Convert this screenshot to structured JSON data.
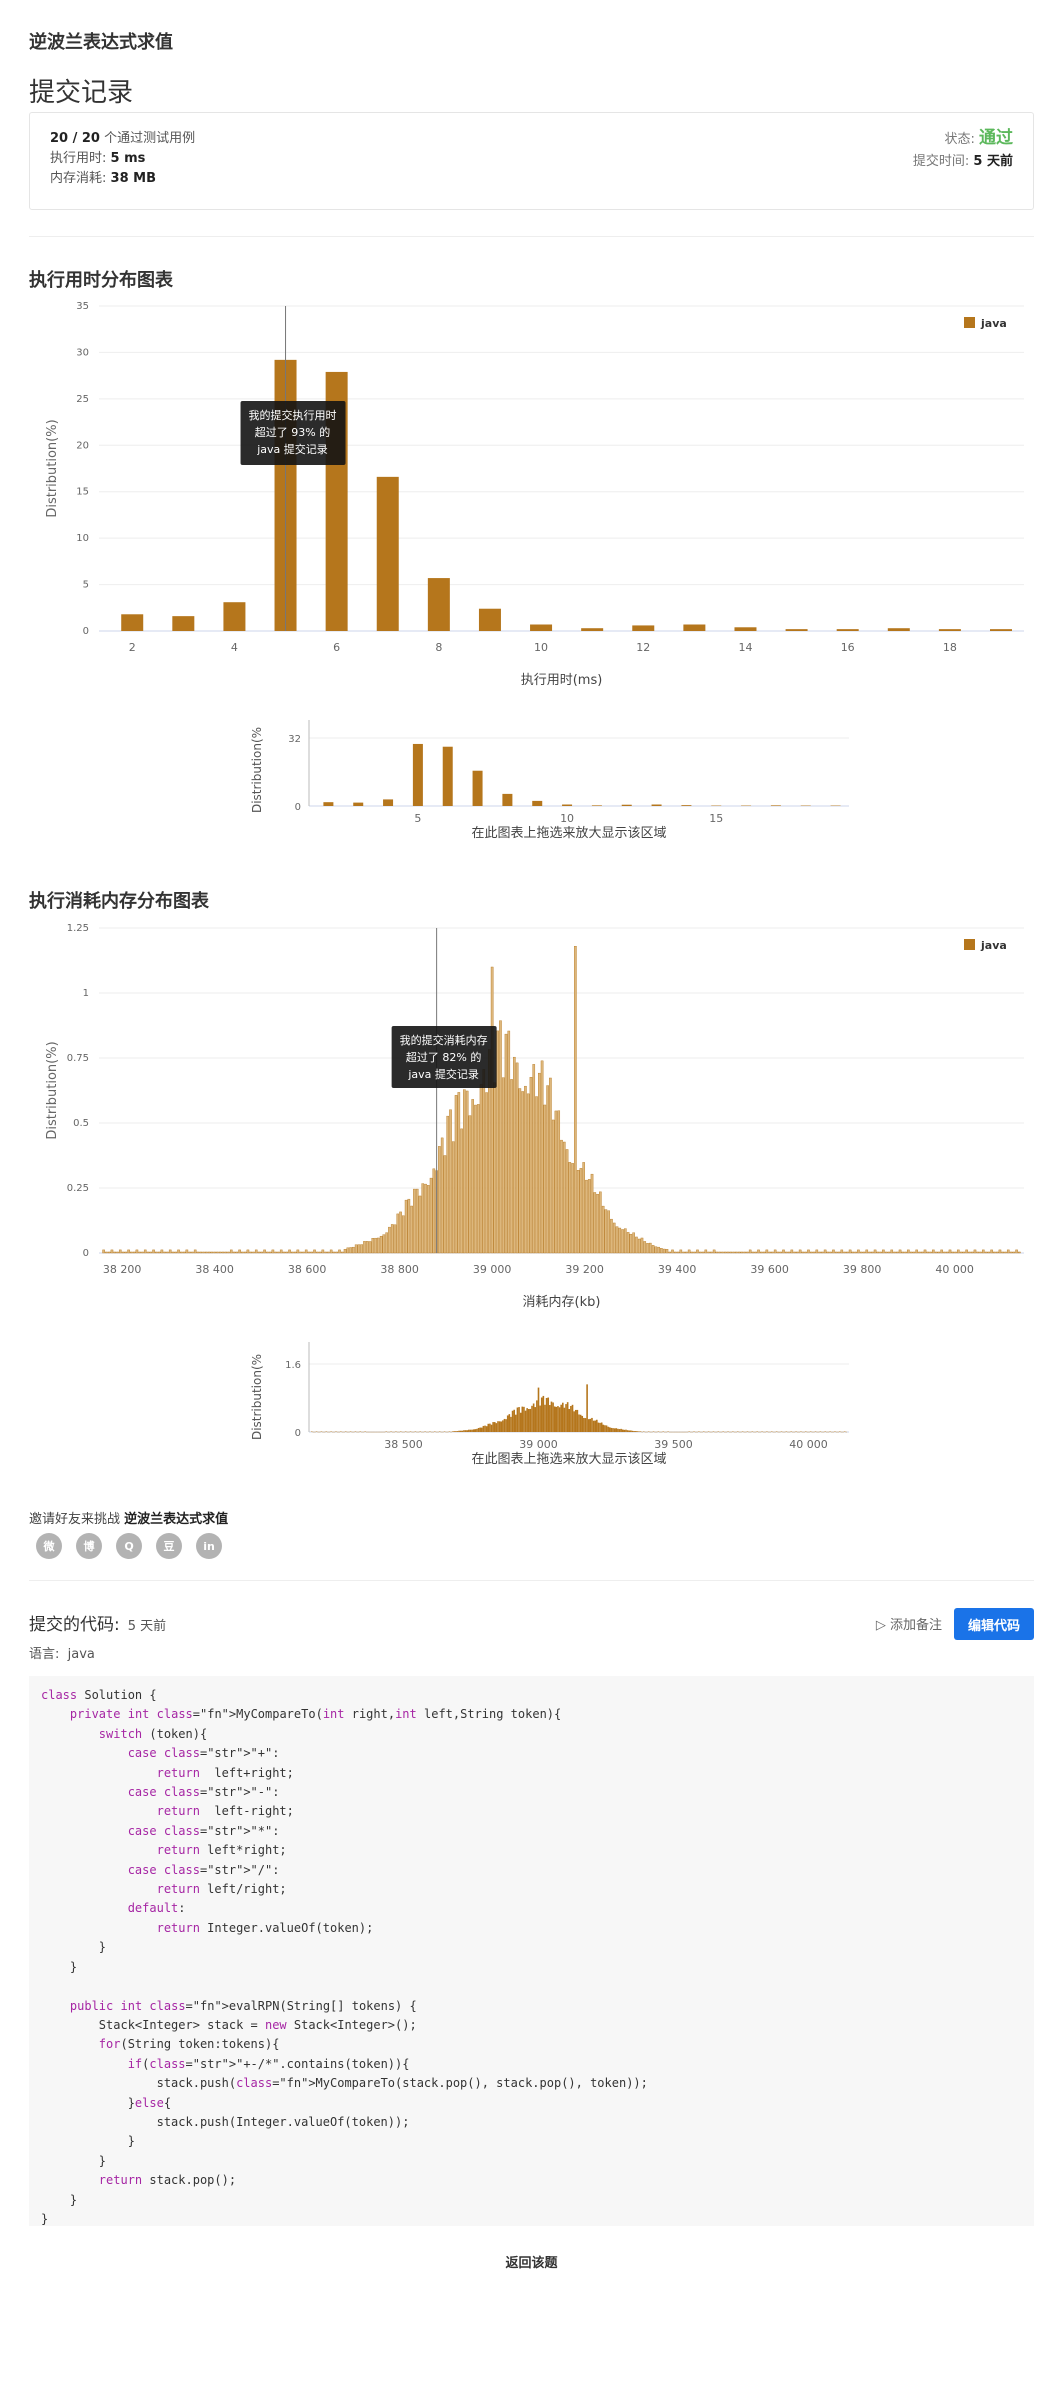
{
  "problem_title": "逆波兰表达式求值",
  "page_heading": "提交记录",
  "summary": {
    "tests_passed": "20 / 20",
    "tests_label": "个通过测试用例",
    "runtime_label": "执行用时:",
    "runtime_value": "5 ms",
    "memory_label": "内存消耗:",
    "memory_value": "38 MB",
    "status_label": "状态:",
    "status_value": "通过",
    "submit_time_label": "提交时间:",
    "submit_time_value": "5 天前"
  },
  "runtime_section_title": "执行用时分布图表",
  "memory_section_title": "执行消耗内存分布图表",
  "brush_hint": "在此图表上拖选来放大显示该区域",
  "colors": {
    "bar": "#b5761c",
    "bar_light": "#ddb77c",
    "accent": "#1a73e8",
    "success": "#5cb85c"
  },
  "chart_data": [
    {
      "type": "bar",
      "title": "执行用时分布图表",
      "xlabel": "执行用时(ms)",
      "ylabel": "Distribution(%)",
      "legend": "java",
      "legend_position": "top-right",
      "x": [
        2,
        3,
        4,
        5,
        6,
        7,
        8,
        9,
        10,
        11,
        12,
        13,
        14,
        15,
        16,
        17,
        18,
        19
      ],
      "values": [
        1.8,
        1.6,
        3.1,
        29.2,
        27.9,
        16.6,
        5.7,
        2.4,
        0.7,
        0.3,
        0.6,
        0.7,
        0.4,
        0.2,
        0.2,
        0.3,
        0.2,
        0.2
      ],
      "xticks": [
        "2",
        "4",
        "6",
        "8",
        "10",
        "12",
        "14",
        "16",
        "18"
      ],
      "yticks": [
        "0",
        "5",
        "10",
        "15",
        "20",
        "25",
        "30",
        "35"
      ],
      "ylim": [
        0,
        35
      ],
      "marker_x": 5,
      "tooltip": [
        "我的提交执行用时",
        "超过了 93% 的",
        "java 提交记录"
      ],
      "overview": {
        "ylabel": "Distribution(%",
        "ytick_max": "32",
        "ytick_zero": "0",
        "xticks": [
          "5",
          "10",
          "15"
        ]
      }
    },
    {
      "type": "bar",
      "title": "执行消耗内存分布图表",
      "xlabel": "消耗内存(kb)",
      "ylabel": "Distribution(%)",
      "legend": "java",
      "legend_position": "top-right",
      "xlim": [
        38150,
        40150
      ],
      "xticks": [
        "38 200",
        "38 400",
        "38 600",
        "38 800",
        "39 000",
        "39 200",
        "39 400",
        "39 600",
        "39 800",
        "40 000"
      ],
      "xtick_values": [
        38200,
        38400,
        38600,
        38800,
        39000,
        39200,
        39400,
        39600,
        39800,
        40000
      ],
      "yticks": [
        "0",
        "0.25",
        "0.5",
        "0.75",
        "1",
        "1.25"
      ],
      "ylim": [
        0,
        1.25
      ],
      "distribution": {
        "center": 39030,
        "spread": 125,
        "peak": 0.78,
        "tallest_x": 39000,
        "tallest_value": 1.1,
        "spike_x": 39180,
        "spike_value": 1.18
      },
      "marker_x": 38880,
      "tooltip": [
        "我的提交消耗内存",
        "超过了 82% 的",
        "java 提交记录"
      ],
      "overview": {
        "ylabel": "Distribution(%",
        "ytick_max": "1.6",
        "ytick_zero": "0",
        "xticks": [
          "38 500",
          "39 000",
          "39 500",
          "40 000"
        ]
      }
    }
  ],
  "invite": {
    "text": "邀请好友来挑战",
    "problem": "逆波兰表达式求值"
  },
  "share_icons": [
    "wechat-icon",
    "weibo-icon",
    "qq-icon",
    "douban-icon",
    "linkedin-icon"
  ],
  "share_glyphs": [
    "微",
    "博",
    "Q",
    "豆",
    "in"
  ],
  "code_section": {
    "title": "提交的代码:",
    "time": "5 天前",
    "language_label": "语言:",
    "language": "java",
    "add_note": "添加备注",
    "edit_code": "编辑代码"
  },
  "code_lines": [
    "class Solution {",
    "    private int MyCompareTo(int right,int left,String token){",
    "        switch (token){",
    "            case \"+\":",
    "                return  left+right;",
    "            case \"-\":",
    "                return  left-right;",
    "            case \"*\":",
    "                return left*right;",
    "            case \"/\":",
    "                return left/right;",
    "            default:",
    "                return Integer.valueOf(token);",
    "        }",
    "    }",
    "",
    "    public int evalRPN(String[] tokens) {",
    "        Stack<Integer> stack = new Stack<Integer>();",
    "        for(String token:tokens){",
    "            if(\"+-/*\".contains(token)){",
    "                stack.push(MyCompareTo(stack.pop(), stack.pop(), token));",
    "            }else{",
    "                stack.push(Integer.valueOf(token));",
    "            }",
    "        }",
    "        return stack.pop();",
    "    }",
    "}"
  ],
  "back_link": "返回该题"
}
